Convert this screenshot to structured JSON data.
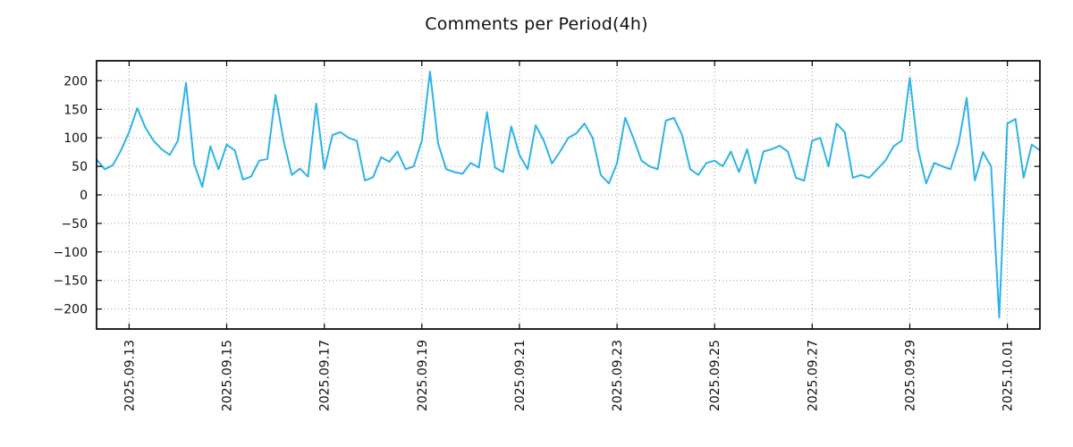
{
  "page": {
    "title": "Comments per Period(4h)"
  },
  "chart_data": {
    "type": "line",
    "title": "Comments per Period(4h)",
    "xlabel": "",
    "ylabel": "",
    "grid": true,
    "grid_style": "dotted",
    "legend_position": "none",
    "line_color": "#2eb3e8",
    "frame_color": "#000000",
    "grid_color": "#9a9a9a",
    "text_color": "#111111",
    "ylim": [
      -235,
      235
    ],
    "yticks": [
      -200,
      -150,
      -100,
      -50,
      0,
      50,
      100,
      150,
      200
    ],
    "xticks": [
      {
        "index": 4,
        "label": "2025.09.13"
      },
      {
        "index": 16,
        "label": "2025.09.15"
      },
      {
        "index": 28,
        "label": "2025.09.17"
      },
      {
        "index": 40,
        "label": "2025.09.19"
      },
      {
        "index": 52,
        "label": "2025.09.21"
      },
      {
        "index": 64,
        "label": "2025.09.23"
      },
      {
        "index": 76,
        "label": "2025.09.25"
      },
      {
        "index": 88,
        "label": "2025.09.27"
      },
      {
        "index": 100,
        "label": "2025.09.29"
      },
      {
        "index": 112,
        "label": "2025.10.01"
      }
    ],
    "values": [
      62,
      45,
      52,
      78,
      110,
      152,
      118,
      95,
      80,
      70,
      95,
      196,
      55,
      14,
      85,
      45,
      88,
      78,
      27,
      32,
      60,
      63,
      175,
      95,
      35,
      46,
      32,
      160,
      45,
      105,
      110,
      100,
      95,
      25,
      31,
      66,
      58,
      76,
      45,
      50,
      95,
      216,
      90,
      45,
      40,
      37,
      56,
      48,
      145,
      48,
      40,
      120,
      70,
      45,
      122,
      95,
      55,
      76,
      100,
      108,
      125,
      100,
      35,
      20,
      56,
      135,
      100,
      60,
      50,
      45,
      130,
      135,
      105,
      45,
      35,
      56,
      60,
      50,
      76,
      40,
      80,
      20,
      76,
      80,
      86,
      76,
      30,
      25,
      95,
      100,
      50,
      125,
      110,
      30,
      35,
      30,
      45,
      60,
      85,
      95,
      205,
      80,
      20,
      56,
      50,
      45,
      90,
      170,
      25,
      75,
      50,
      -215,
      125,
      133,
      30,
      88,
      78
    ]
  }
}
